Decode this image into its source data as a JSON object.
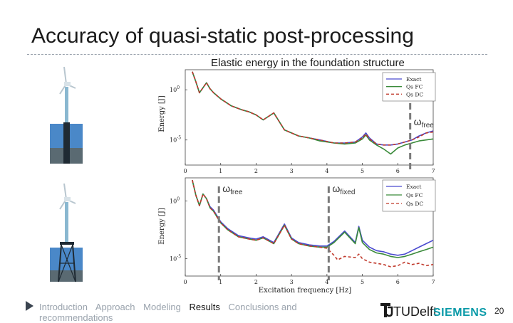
{
  "slide": {
    "title": "Accuracy of quasi-static post-processing",
    "page_number": "20"
  },
  "footer": {
    "nav": [
      "Introduction",
      "Approach",
      "Modeling",
      "Results",
      "Conclusions and recommendations"
    ],
    "active": "Results",
    "logos": [
      "TUDelft",
      "SIEMENS"
    ]
  },
  "colors": {
    "exact": "#4a4acf",
    "qs_fc": "#3a8a3a",
    "qs_dc": "#c0392b",
    "marker_line": "#7a7a7a",
    "water": "#4a88c8",
    "seabed": "#5a6a72",
    "tower": "#8ab8d0"
  },
  "chart_data": [
    {
      "type": "line",
      "title": "Elastic energy in the foundation structure",
      "xlabel": "",
      "ylabel": "Energy [J]",
      "yscale": "log",
      "xlim": [
        0,
        7
      ],
      "ylim_exp": [
        -7.5,
        2
      ],
      "x_ticks": [
        0,
        1,
        2,
        3,
        4,
        5,
        6,
        7
      ],
      "y_ticks": [
        "10^0",
        "10^-5"
      ],
      "legend": {
        "placement": "top-right",
        "entries": [
          "Exact",
          "Qs FC",
          "Qs DC"
        ]
      },
      "annotations": [
        {
          "label": "ωfree",
          "x": 6.35
        }
      ],
      "series": [
        {
          "name": "Exact",
          "x": [
            0.2,
            0.3,
            0.4,
            0.5,
            0.6,
            0.7,
            0.8,
            1.0,
            1.3,
            1.6,
            1.8,
            2.0,
            2.2,
            2.5,
            2.8,
            3.2,
            3.5,
            3.8,
            4.2,
            4.5,
            4.8,
            5.0,
            5.1,
            5.2,
            5.4,
            5.6,
            5.8,
            6.0,
            6.2,
            6.4,
            6.6,
            6.8,
            7.0
          ],
          "y_exp": [
            1.8,
            0.8,
            -0.3,
            0.2,
            0.7,
            0.1,
            -0.3,
            -0.9,
            -1.6,
            -2.0,
            -2.2,
            -2.5,
            -3.0,
            -2.3,
            -4.0,
            -4.6,
            -4.8,
            -5.0,
            -5.3,
            -5.3,
            -5.2,
            -4.7,
            -4.3,
            -4.8,
            -5.4,
            -5.5,
            -5.5,
            -5.4,
            -5.2,
            -5.0,
            -4.6,
            -4.3,
            -4.1
          ]
        },
        {
          "name": "Qs FC",
          "x": [
            0.2,
            0.3,
            0.4,
            0.5,
            0.6,
            0.7,
            0.8,
            1.0,
            1.3,
            1.6,
            1.8,
            2.0,
            2.2,
            2.5,
            2.8,
            3.2,
            3.5,
            3.8,
            4.2,
            4.5,
            4.8,
            5.0,
            5.1,
            5.2,
            5.4,
            5.6,
            5.8,
            6.0,
            6.2,
            6.4,
            6.6,
            6.8,
            7.0
          ],
          "y_exp": [
            1.8,
            0.8,
            -0.3,
            0.2,
            0.7,
            0.1,
            -0.3,
            -0.9,
            -1.6,
            -2.0,
            -2.2,
            -2.5,
            -3.0,
            -2.3,
            -4.0,
            -4.6,
            -4.8,
            -5.1,
            -5.3,
            -5.4,
            -5.3,
            -4.9,
            -4.5,
            -5.0,
            -5.5,
            -5.9,
            -6.4,
            -5.8,
            -5.5,
            -5.3,
            -5.1,
            -5.0,
            -4.9
          ]
        },
        {
          "name": "Qs DC",
          "x": [
            0.2,
            0.3,
            0.4,
            0.5,
            0.6,
            0.7,
            0.8,
            1.0,
            1.3,
            1.6,
            1.8,
            2.0,
            2.2,
            2.5,
            2.8,
            3.2,
            3.5,
            3.8,
            4.2,
            4.5,
            4.8,
            5.0,
            5.1,
            5.2,
            5.4,
            5.6,
            5.8,
            6.0,
            6.2,
            6.4,
            6.6,
            6.8,
            7.0
          ],
          "y_exp": [
            1.8,
            0.8,
            -0.3,
            0.2,
            0.7,
            0.1,
            -0.3,
            -0.9,
            -1.6,
            -2.0,
            -2.2,
            -2.5,
            -3.0,
            -2.3,
            -4.0,
            -4.6,
            -4.8,
            -5.0,
            -5.3,
            -5.3,
            -5.2,
            -4.8,
            -4.4,
            -4.9,
            -5.4,
            -5.5,
            -5.5,
            -5.4,
            -5.2,
            -5.0,
            -4.7,
            -4.3,
            -4.2
          ]
        }
      ]
    },
    {
      "type": "line",
      "title": "",
      "xlabel": "Excitation frequency [Hz]",
      "ylabel": "Energy [J]",
      "yscale": "log",
      "xlim": [
        0,
        7
      ],
      "ylim_exp": [
        -6.5,
        2
      ],
      "x_ticks": [
        0,
        1,
        2,
        3,
        4,
        5,
        6,
        7
      ],
      "y_ticks": [
        "10^0",
        "10^-5"
      ],
      "legend": {
        "placement": "top-right",
        "entries": [
          "Exact",
          "Qs FC",
          "Qs DC"
        ]
      },
      "annotations": [
        {
          "label": "ωfree",
          "x": 0.95
        },
        {
          "label": "ωfixed",
          "x": 4.05
        }
      ],
      "series": [
        {
          "name": "Exact",
          "x": [
            0.2,
            0.3,
            0.4,
            0.5,
            0.6,
            0.7,
            0.8,
            0.9,
            1.0,
            1.2,
            1.5,
            1.8,
            2.0,
            2.2,
            2.5,
            2.8,
            3.0,
            3.2,
            3.5,
            3.8,
            4.0,
            4.2,
            4.5,
            4.8,
            4.9,
            5.0,
            5.2,
            5.4,
            5.6,
            5.8,
            6.0,
            6.2,
            6.4,
            6.6,
            6.8,
            7.0
          ],
          "y_exp": [
            1.8,
            0.5,
            -0.4,
            0.6,
            0.2,
            -0.5,
            -0.8,
            -1.3,
            -1.8,
            -2.4,
            -3.0,
            -3.2,
            -3.3,
            -3.1,
            -3.6,
            -2.0,
            -3.2,
            -3.6,
            -3.8,
            -3.9,
            -3.9,
            -3.5,
            -2.6,
            -3.6,
            -2.2,
            -3.4,
            -4.0,
            -4.3,
            -4.4,
            -4.6,
            -4.7,
            -4.6,
            -4.3,
            -4.0,
            -3.7,
            -3.4
          ]
        },
        {
          "name": "Qs FC",
          "x": [
            0.2,
            0.3,
            0.4,
            0.5,
            0.6,
            0.7,
            0.8,
            0.9,
            1.0,
            1.2,
            1.5,
            1.8,
            2.0,
            2.2,
            2.5,
            2.8,
            3.0,
            3.2,
            3.5,
            3.8,
            4.0,
            4.2,
            4.5,
            4.8,
            4.9,
            5.0,
            5.2,
            5.4,
            5.6,
            5.8,
            6.0,
            6.2,
            6.4,
            6.6,
            6.8,
            7.0
          ],
          "y_exp": [
            1.8,
            0.5,
            -0.4,
            0.6,
            0.2,
            -0.6,
            -0.9,
            -1.4,
            -1.9,
            -2.5,
            -3.1,
            -3.3,
            -3.4,
            -3.2,
            -3.7,
            -2.1,
            -3.3,
            -3.7,
            -3.9,
            -4.0,
            -4.0,
            -3.6,
            -2.7,
            -3.7,
            -2.3,
            -3.6,
            -4.2,
            -4.5,
            -4.6,
            -4.8,
            -4.9,
            -4.8,
            -4.6,
            -4.4,
            -4.2,
            -4.0
          ]
        },
        {
          "name": "Qs DC",
          "x": [
            0.2,
            0.3,
            0.4,
            0.5,
            0.6,
            0.7,
            0.8,
            0.9,
            1.0,
            1.2,
            1.5,
            1.8,
            2.0,
            2.2,
            2.5,
            2.8,
            3.0,
            3.2,
            3.5,
            3.8,
            4.0,
            4.2,
            4.3,
            4.5,
            4.8,
            4.9,
            5.0,
            5.2,
            5.4,
            5.6,
            5.8,
            6.0,
            6.2,
            6.4,
            6.6,
            6.8,
            7.0
          ],
          "y_exp": [
            1.8,
            0.5,
            -0.4,
            0.6,
            0.2,
            -0.6,
            -0.9,
            -1.4,
            -1.9,
            -2.5,
            -3.1,
            -3.3,
            -3.4,
            -3.2,
            -3.7,
            -2.1,
            -3.3,
            -3.7,
            -3.9,
            -4.0,
            -4.1,
            -4.7,
            -5.1,
            -4.8,
            -4.9,
            -4.6,
            -5.0,
            -5.3,
            -5.4,
            -5.5,
            -5.7,
            -5.6,
            -5.3,
            -5.5,
            -5.4,
            -5.6,
            -5.5
          ]
        }
      ]
    }
  ]
}
